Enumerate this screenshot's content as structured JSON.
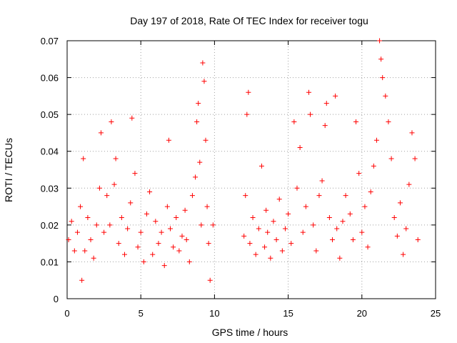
{
  "chart_data": {
    "type": "scatter",
    "title": "Day 197 of 2018, Rate Of TEC Index for receiver togu",
    "xlabel": "GPS time / hours",
    "ylabel": "ROTI / TECUs",
    "xlim": [
      0,
      25
    ],
    "ylim": [
      0,
      0.07
    ],
    "x_ticks": [
      0,
      5,
      10,
      15,
      20,
      25
    ],
    "x_tick_labels": [
      "0",
      "5",
      "10",
      "15",
      "20",
      "25"
    ],
    "y_ticks": [
      0,
      0.01,
      0.02,
      0.03,
      0.04,
      0.05,
      0.06,
      0.07
    ],
    "y_tick_labels": [
      "0",
      "0.01",
      "0.02",
      "0.03",
      "0.04",
      "0.05",
      "0.06",
      "0.07"
    ],
    "grid": true,
    "marker": "plus",
    "point_color": "#ff0000",
    "data_gap_hours": [
      10.0,
      11.9
    ],
    "series": [
      {
        "points": [
          [
            0.1,
            0.016
          ],
          [
            0.3,
            0.021
          ],
          [
            0.5,
            0.013
          ],
          [
            0.7,
            0.018
          ],
          [
            0.9,
            0.025
          ],
          [
            1.0,
            0.005
          ],
          [
            1.1,
            0.038
          ],
          [
            1.2,
            0.013
          ],
          [
            1.4,
            0.022
          ],
          [
            1.6,
            0.016
          ],
          [
            1.8,
            0.011
          ],
          [
            2.0,
            0.02
          ],
          [
            2.2,
            0.03
          ],
          [
            2.3,
            0.045
          ],
          [
            2.5,
            0.018
          ],
          [
            2.7,
            0.028
          ],
          [
            2.9,
            0.02
          ],
          [
            3.0,
            0.048
          ],
          [
            3.2,
            0.031
          ],
          [
            3.3,
            0.038
          ],
          [
            3.5,
            0.015
          ],
          [
            3.7,
            0.022
          ],
          [
            3.9,
            0.012
          ],
          [
            4.1,
            0.019
          ],
          [
            4.3,
            0.026
          ],
          [
            4.4,
            0.049
          ],
          [
            4.6,
            0.034
          ],
          [
            4.8,
            0.014
          ],
          [
            5.0,
            0.018
          ],
          [
            5.2,
            0.01
          ],
          [
            5.4,
            0.023
          ],
          [
            5.6,
            0.029
          ],
          [
            5.8,
            0.012
          ],
          [
            6.0,
            0.021
          ],
          [
            6.2,
            0.015
          ],
          [
            6.4,
            0.018
          ],
          [
            6.6,
            0.009
          ],
          [
            6.8,
            0.025
          ],
          [
            6.9,
            0.043
          ],
          [
            7.0,
            0.019
          ],
          [
            7.2,
            0.014
          ],
          [
            7.4,
            0.022
          ],
          [
            7.6,
            0.013
          ],
          [
            7.8,
            0.017
          ],
          [
            8.0,
            0.024
          ],
          [
            8.1,
            0.016
          ],
          [
            8.3,
            0.01
          ],
          [
            8.5,
            0.028
          ],
          [
            8.7,
            0.033
          ],
          [
            8.8,
            0.048
          ],
          [
            8.9,
            0.053
          ],
          [
            9.0,
            0.037
          ],
          [
            9.1,
            0.02
          ],
          [
            9.2,
            0.064
          ],
          [
            9.3,
            0.059
          ],
          [
            9.4,
            0.043
          ],
          [
            9.5,
            0.025
          ],
          [
            9.6,
            0.015
          ],
          [
            9.7,
            0.005
          ],
          [
            9.9,
            0.02
          ],
          [
            12.0,
            0.017
          ],
          [
            12.1,
            0.028
          ],
          [
            12.2,
            0.05
          ],
          [
            12.3,
            0.056
          ],
          [
            12.4,
            0.015
          ],
          [
            12.6,
            0.022
          ],
          [
            12.8,
            0.012
          ],
          [
            13.0,
            0.019
          ],
          [
            13.2,
            0.036
          ],
          [
            13.4,
            0.014
          ],
          [
            13.5,
            0.024
          ],
          [
            13.6,
            0.018
          ],
          [
            13.8,
            0.011
          ],
          [
            14.0,
            0.021
          ],
          [
            14.2,
            0.016
          ],
          [
            14.4,
            0.027
          ],
          [
            14.6,
            0.013
          ],
          [
            14.8,
            0.019
          ],
          [
            15.0,
            0.023
          ],
          [
            15.2,
            0.015
          ],
          [
            15.4,
            0.048
          ],
          [
            15.6,
            0.03
          ],
          [
            15.8,
            0.041
          ],
          [
            16.0,
            0.018
          ],
          [
            16.2,
            0.025
          ],
          [
            16.4,
            0.056
          ],
          [
            16.5,
            0.05
          ],
          [
            16.7,
            0.02
          ],
          [
            16.9,
            0.013
          ],
          [
            17.1,
            0.028
          ],
          [
            17.3,
            0.032
          ],
          [
            17.5,
            0.047
          ],
          [
            17.6,
            0.053
          ],
          [
            17.8,
            0.022
          ],
          [
            18.0,
            0.016
          ],
          [
            18.2,
            0.055
          ],
          [
            18.3,
            0.019
          ],
          [
            18.5,
            0.011
          ],
          [
            18.7,
            0.021
          ],
          [
            18.9,
            0.028
          ],
          [
            19.2,
            0.023
          ],
          [
            19.4,
            0.016
          ],
          [
            19.6,
            0.048
          ],
          [
            19.8,
            0.034
          ],
          [
            20.0,
            0.018
          ],
          [
            20.2,
            0.025
          ],
          [
            20.4,
            0.014
          ],
          [
            20.6,
            0.029
          ],
          [
            20.8,
            0.036
          ],
          [
            21.0,
            0.043
          ],
          [
            21.2,
            0.07
          ],
          [
            21.3,
            0.065
          ],
          [
            21.4,
            0.06
          ],
          [
            21.6,
            0.055
          ],
          [
            21.8,
            0.048
          ],
          [
            22.0,
            0.038
          ],
          [
            22.2,
            0.022
          ],
          [
            22.4,
            0.017
          ],
          [
            22.6,
            0.026
          ],
          [
            22.8,
            0.012
          ],
          [
            23.0,
            0.019
          ],
          [
            23.2,
            0.031
          ],
          [
            23.4,
            0.045
          ],
          [
            23.6,
            0.038
          ],
          [
            23.8,
            0.016
          ]
        ]
      }
    ]
  }
}
